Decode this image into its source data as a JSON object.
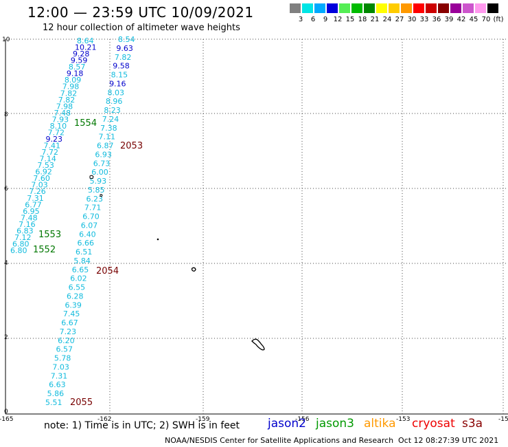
{
  "header": {
    "title": "12:00 — 23:59 UTC 10/09/2021",
    "subtitle": "12 hour collection of altimeter wave heights"
  },
  "color_scale": {
    "unit": "(ft)",
    "entries": [
      {
        "label": "3",
        "color": "#808080"
      },
      {
        "label": "6",
        "color": "#00e5e5"
      },
      {
        "label": "9",
        "color": "#00aaff"
      },
      {
        "label": "12",
        "color": "#0000dd"
      },
      {
        "label": "15",
        "color": "#55ee55"
      },
      {
        "label": "18",
        "color": "#00bb00"
      },
      {
        "label": "21",
        "color": "#008800"
      },
      {
        "label": "24",
        "color": "#ffff00"
      },
      {
        "label": "27",
        "color": "#ffcc00"
      },
      {
        "label": "30",
        "color": "#ff9900"
      },
      {
        "label": "33",
        "color": "#ff0000"
      },
      {
        "label": "36",
        "color": "#cc0000"
      },
      {
        "label": "39",
        "color": "#880000"
      },
      {
        "label": "42",
        "color": "#990099"
      },
      {
        "label": "45",
        "color": "#cc55cc"
      },
      {
        "label": "70",
        "color": "#ff99ee"
      },
      {
        "label": "",
        "color": "#000000"
      }
    ]
  },
  "map": {
    "lon_ticks": [
      "-165",
      "-162",
      "-159",
      "-156",
      "-153",
      "-15"
    ],
    "lat_ticks": [
      "0",
      "2",
      "4",
      "6",
      "8",
      "10"
    ],
    "colors": {
      "cyan": "#11bbdd",
      "blue": "#0000cc",
      "green": "#007700",
      "darkred": "#770000"
    },
    "track_a_values": [
      "8.64",
      "10.21",
      "9.28",
      "9.59",
      "8.57",
      "9.18",
      "8.09",
      "7.98",
      "7.82",
      "7.82",
      "7.98",
      "7.48",
      "7.93",
      "8.10",
      "7.72",
      "9.23",
      "7.41",
      "7.72",
      "7.14",
      "7.53",
      "6.92",
      "7.60",
      "7.03",
      "7.26",
      "7.31",
      "6.77",
      "6.95",
      "7.48",
      "7.16",
      "6.83",
      "7.12",
      "6.80",
      "6.80"
    ],
    "track_b_values": [
      "8.54",
      "9.63",
      "7.82",
      "9.58",
      "8.15",
      "9.16",
      "8.03",
      "8.96",
      "8.23",
      "7.24",
      "7.38",
      "7.11",
      "6.87",
      "6.93",
      "6.73",
      "6.00",
      "5.93",
      "5.85",
      "6.23",
      "7.71",
      "6.70",
      "6.07",
      "6.40",
      "6.66",
      "6.51",
      "5.84",
      "6.65",
      "6.02",
      "6.55",
      "6.28",
      "6.39",
      "7.45",
      "6.67",
      "7.23",
      "6.20",
      "6.57",
      "5.78",
      "7.03",
      "7.31",
      "6.63",
      "5.86",
      "5.51"
    ],
    "pass_labels": [
      {
        "text": "1554",
        "color": "green"
      },
      {
        "text": "2053",
        "color": "darkred"
      },
      {
        "text": "1553",
        "color": "green"
      },
      {
        "text": "1552",
        "color": "green"
      },
      {
        "text": "2054",
        "color": "darkred"
      },
      {
        "text": "2055",
        "color": "darkred"
      }
    ]
  },
  "footer": {
    "note": "note: 1) Time is in UTC; 2) SWH is in feet",
    "satellites": [
      {
        "name": "jason2",
        "color": "#0000cc"
      },
      {
        "name": "jason3",
        "color": "#009900"
      },
      {
        "name": "altika",
        "color": "#ff9900"
      },
      {
        "name": "cryosat",
        "color": "#ee0000"
      },
      {
        "name": "s3a",
        "color": "#880000"
      }
    ],
    "credit": "NOAA/NESDIS Center for Satellite Applications and Research",
    "timestamp": "Oct 12 08:27:39 UTC 2021"
  }
}
